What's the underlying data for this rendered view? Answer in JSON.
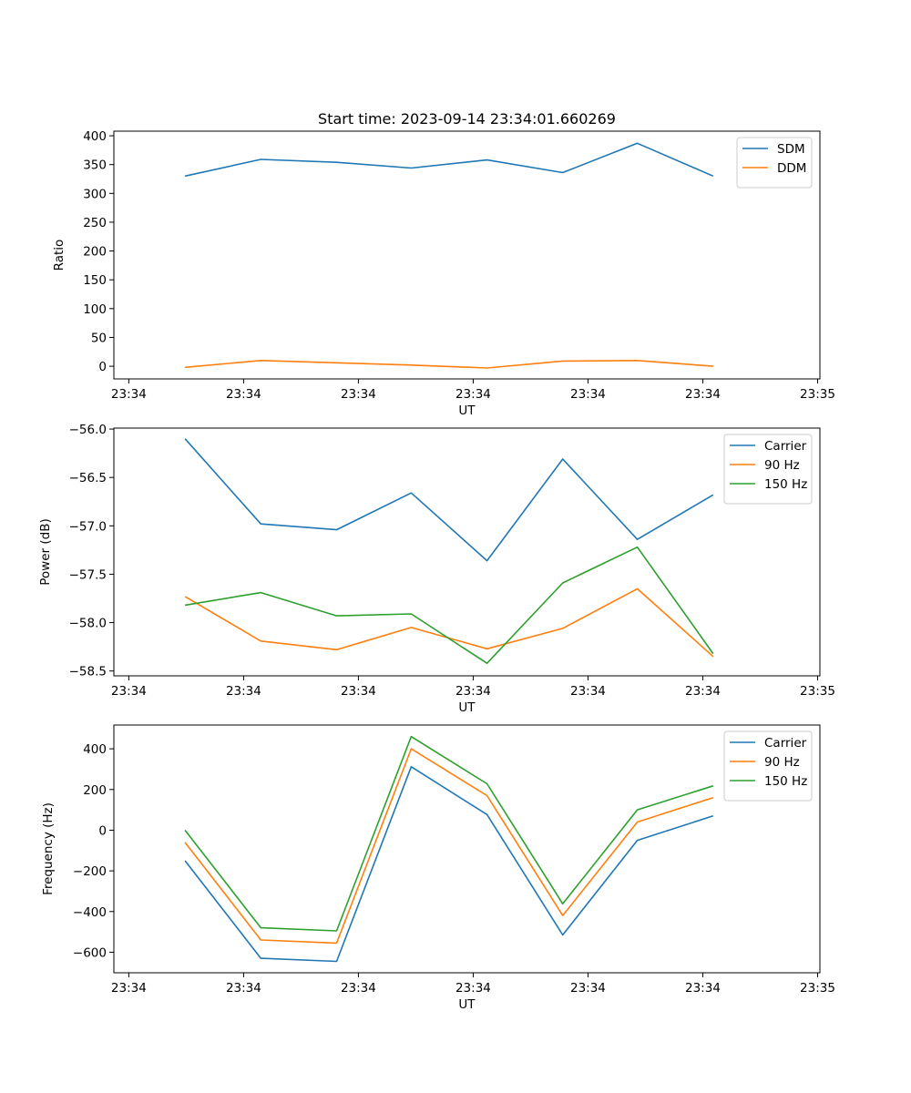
{
  "title": "Start time: 2023-09-14 23:34:01.660269",
  "colors": {
    "blue": "#1f77b4",
    "orange": "#ff7f0e",
    "green": "#2ca02c"
  },
  "chart_data": [
    {
      "type": "line",
      "title": "Start time: 2023-09-14 23:34:01.660269",
      "xlabel": "UT",
      "ylabel": "Ratio",
      "x_tick_labels": [
        "23:34",
        "23:34",
        "23:34",
        "23:34",
        "23:34",
        "23:34",
        "23:35"
      ],
      "x_ticks": [
        0,
        1,
        2,
        3,
        4,
        5,
        6
      ],
      "xlim": [
        -0.13,
        6.02
      ],
      "x": [
        0.49,
        1.15,
        1.81,
        2.46,
        3.12,
        3.78,
        4.43,
        5.09
      ],
      "yticks": [
        0,
        50,
        100,
        150,
        200,
        250,
        300,
        350,
        400
      ],
      "ylim": [
        -22,
        408
      ],
      "legend": "top-right",
      "series": [
        {
          "name": "SDM",
          "color": "#1f77b4",
          "values": [
            330,
            359,
            354,
            344,
            358,
            336,
            387,
            330
          ]
        },
        {
          "name": "DDM",
          "color": "#ff7f0e",
          "values": [
            -2,
            10,
            6,
            2,
            -3,
            9,
            10,
            0
          ]
        }
      ]
    },
    {
      "type": "line",
      "xlabel": "UT",
      "ylabel": "Power (dB)",
      "x_tick_labels": [
        "23:34",
        "23:34",
        "23:34",
        "23:34",
        "23:34",
        "23:34",
        "23:35"
      ],
      "x_ticks": [
        0,
        1,
        2,
        3,
        4,
        5,
        6
      ],
      "xlim": [
        -0.13,
        6.02
      ],
      "x": [
        0.49,
        1.15,
        1.81,
        2.46,
        3.12,
        3.78,
        4.43,
        5.09
      ],
      "yticks": [
        -58.5,
        -58.0,
        -57.5,
        -57.0,
        -56.5,
        -56.0
      ],
      "ytick_labels": [
        "−58.5",
        "−58.0",
        "−57.5",
        "−57.0",
        "−56.5",
        "−56.0"
      ],
      "ylim": [
        -58.55,
        -55.99
      ],
      "legend": "top-right",
      "series": [
        {
          "name": "Carrier",
          "color": "#1f77b4",
          "values": [
            -56.1,
            -56.98,
            -57.04,
            -56.66,
            -57.36,
            -56.31,
            -57.14,
            -56.68
          ]
        },
        {
          "name": "90 Hz",
          "color": "#ff7f0e",
          "values": [
            -57.73,
            -58.19,
            -58.28,
            -58.05,
            -58.27,
            -58.06,
            -57.65,
            -58.35
          ]
        },
        {
          "name": "150 Hz",
          "color": "#2ca02c",
          "values": [
            -57.82,
            -57.69,
            -57.93,
            -57.91,
            -58.42,
            -57.59,
            -57.22,
            -58.32
          ]
        }
      ]
    },
    {
      "type": "line",
      "xlabel": "UT",
      "ylabel": "Frequency (Hz)",
      "x_tick_labels": [
        "23:34",
        "23:34",
        "23:34",
        "23:34",
        "23:34",
        "23:34",
        "23:35"
      ],
      "x_ticks": [
        0,
        1,
        2,
        3,
        4,
        5,
        6
      ],
      "xlim": [
        -0.13,
        6.02
      ],
      "x": [
        0.49,
        1.15,
        1.81,
        2.46,
        3.12,
        3.78,
        4.43,
        5.09
      ],
      "yticks": [
        -600,
        -400,
        -200,
        0,
        200,
        400
      ],
      "ytick_labels": [
        "−600",
        "−400",
        "−200",
        "0",
        "200",
        "400"
      ],
      "ylim": [
        -701,
        517
      ],
      "legend": "top-right",
      "series": [
        {
          "name": "Carrier",
          "color": "#1f77b4",
          "values": [
            -150,
            -630,
            -645,
            312,
            77,
            -515,
            -50,
            70
          ]
        },
        {
          "name": "90 Hz",
          "color": "#ff7f0e",
          "values": [
            -60,
            -540,
            -555,
            400,
            170,
            -420,
            40,
            160
          ]
        },
        {
          "name": "150 Hz",
          "color": "#2ca02c",
          "values": [
            0,
            -480,
            -495,
            460,
            228,
            -362,
            100,
            218
          ]
        }
      ]
    }
  ]
}
